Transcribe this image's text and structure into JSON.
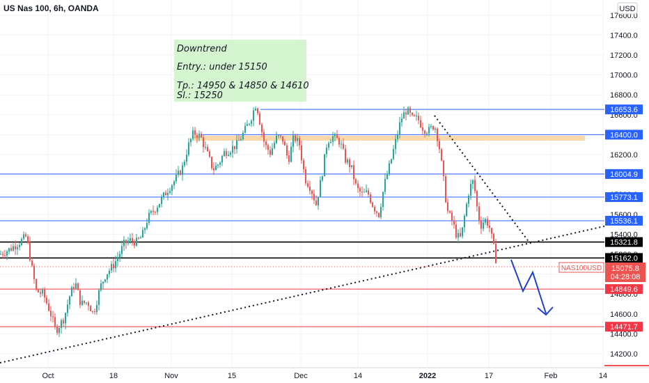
{
  "chart_data": {
    "type": "candlestick",
    "title": "US Nas 100, 6h, OANDA",
    "currency": "USD",
    "symbol": "NAS100USD",
    "last_price": "15075.8",
    "countdown": "04:28:08",
    "y_ticks": [
      14200,
      14400,
      14600,
      14800,
      15000,
      15200,
      15400,
      15600,
      15800,
      16000,
      16200,
      16400,
      16600,
      16800,
      17000,
      17200,
      17400,
      17600
    ],
    "y_tick_labels": [
      "14200.0",
      "14400.0",
      "14600.0",
      "14800.0",
      "15000.0",
      "15200.0",
      "15400.0",
      "15600.0",
      "15800.0",
      "16000.0",
      "16200.0",
      "16400.0",
      "16600.0",
      "16800.0",
      "17000.0",
      "17200.0",
      "17400.0",
      "17600.0"
    ],
    "ylim": [
      14100,
      17700
    ],
    "x_ticks": [
      "Oct",
      "18",
      "Nov",
      "15",
      "Dec",
      "14",
      "2022",
      "17",
      "Feb",
      "14"
    ],
    "annotation": {
      "lines": [
        "Downtrend",
        "Entry.: under 15150",
        "Tp.: 14950 & 14850 & 14610",
        "Sl.: 15250"
      ]
    },
    "levels": [
      {
        "value": 16653.6,
        "label": "16653.6",
        "kind": "resistance"
      },
      {
        "value": 16400.0,
        "label": "16400.0",
        "kind": "resistance"
      },
      {
        "value": 16004.9,
        "label": "16004.9",
        "kind": "resistance"
      },
      {
        "value": 15773.1,
        "label": "15773.1",
        "kind": "resistance"
      },
      {
        "value": 15536.1,
        "label": "15536.1",
        "kind": "resistance"
      },
      {
        "value": 15321.8,
        "label": "15321.8",
        "kind": "pivot"
      },
      {
        "value": 15162.0,
        "label": "15162.0",
        "kind": "pivot"
      },
      {
        "value": 14849.6,
        "label": "14849.6",
        "kind": "target"
      },
      {
        "value": 14471.7,
        "label": "14471.7",
        "kind": "target"
      }
    ],
    "supply_zone": [
      16340,
      16390
    ],
    "colors": {
      "up": "#26a69a",
      "down": "#ef5350",
      "blue_line": "#2962ff",
      "black_line": "#000000",
      "red_line": "#f23645",
      "zone": "#fdd8a8",
      "note_bg": "#d4f5d0",
      "arrow": "#1e3fd0"
    },
    "candle_path": [
      [
        0,
        15200
      ],
      [
        14,
        15250
      ],
      [
        28,
        15320
      ],
      [
        38,
        15380
      ],
      [
        46,
        15050
      ],
      [
        52,
        14830
      ],
      [
        62,
        14800
      ],
      [
        72,
        14620
      ],
      [
        80,
        14430
      ],
      [
        92,
        14560
      ],
      [
        100,
        14780
      ],
      [
        108,
        14920
      ],
      [
        116,
        14700
      ],
      [
        126,
        14720
      ],
      [
        134,
        14600
      ],
      [
        144,
        14870
      ],
      [
        152,
        15000
      ],
      [
        162,
        15080
      ],
      [
        170,
        15180
      ],
      [
        178,
        15300
      ],
      [
        186,
        15340
      ],
      [
        196,
        15320
      ],
      [
        204,
        15380
      ],
      [
        212,
        15560
      ],
      [
        222,
        15650
      ],
      [
        232,
        15750
      ],
      [
        242,
        15860
      ],
      [
        252,
        15950
      ],
      [
        262,
        16070
      ],
      [
        270,
        16280
      ],
      [
        278,
        16420
      ],
      [
        288,
        16380
      ],
      [
        298,
        16200
      ],
      [
        306,
        16050
      ],
      [
        314,
        16110
      ],
      [
        322,
        16220
      ],
      [
        332,
        16260
      ],
      [
        340,
        16300
      ],
      [
        350,
        16420
      ],
      [
        360,
        16560
      ],
      [
        368,
        16720
      ],
      [
        374,
        16500
      ],
      [
        380,
        16300
      ],
      [
        388,
        16220
      ],
      [
        398,
        16380
      ],
      [
        406,
        16350
      ],
      [
        414,
        16140
      ],
      [
        422,
        16380
      ],
      [
        430,
        16300
      ],
      [
        438,
        15960
      ],
      [
        446,
        15870
      ],
      [
        454,
        15700
      ],
      [
        462,
        15980
      ],
      [
        470,
        16340
      ],
      [
        478,
        16380
      ],
      [
        488,
        16330
      ],
      [
        496,
        16150
      ],
      [
        504,
        16080
      ],
      [
        512,
        15860
      ],
      [
        520,
        15800
      ],
      [
        528,
        15820
      ],
      [
        536,
        15680
      ],
      [
        544,
        15600
      ],
      [
        552,
        15900
      ],
      [
        560,
        16100
      ],
      [
        568,
        16330
      ],
      [
        576,
        16560
      ],
      [
        584,
        16650
      ],
      [
        592,
        16560
      ],
      [
        600,
        16560
      ],
      [
        608,
        16460
      ],
      [
        616,
        16440
      ],
      [
        624,
        16500
      ],
      [
        630,
        16320
      ],
      [
        636,
        16000
      ],
      [
        642,
        15640
      ],
      [
        650,
        15520
      ],
      [
        656,
        15380
      ],
      [
        662,
        15360
      ],
      [
        668,
        15620
      ],
      [
        674,
        15860
      ],
      [
        680,
        15940
      ],
      [
        686,
        15620
      ],
      [
        690,
        15480
      ],
      [
        696,
        15550
      ],
      [
        702,
        15500
      ],
      [
        708,
        15300
      ],
      [
        714,
        15076
      ]
    ]
  }
}
